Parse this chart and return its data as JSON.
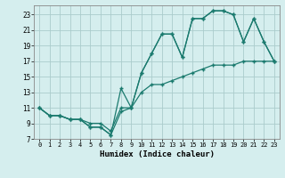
{
  "xlabel": "Humidex (Indice chaleur)",
  "bg_color": "#d5eeee",
  "grid_color": "#aacccc",
  "line_color": "#1a7a6e",
  "xlim": [
    -0.5,
    23.5
  ],
  "ylim": [
    7,
    24.2
  ],
  "xticks": [
    0,
    1,
    2,
    3,
    4,
    5,
    6,
    7,
    8,
    9,
    10,
    11,
    12,
    13,
    14,
    15,
    16,
    17,
    18,
    19,
    20,
    21,
    22,
    23
  ],
  "yticks": [
    7,
    9,
    11,
    13,
    15,
    17,
    19,
    21,
    23
  ],
  "line1_x": [
    0,
    1,
    2,
    3,
    4,
    5,
    6,
    7,
    8,
    9,
    10,
    11,
    12,
    13,
    14,
    15,
    16,
    17,
    18,
    19,
    20,
    21,
    22,
    23
  ],
  "line1_y": [
    11,
    10,
    10,
    9.5,
    9.5,
    8.5,
    8.5,
    7.5,
    10.5,
    11,
    15.5,
    18,
    20.5,
    20.5,
    17.5,
    22.5,
    22.5,
    23.5,
    23.5,
    23,
    19.5,
    22.5,
    19.5,
    17
  ],
  "line2_x": [
    0,
    1,
    2,
    3,
    4,
    5,
    6,
    7,
    8,
    9,
    10,
    11,
    12,
    13,
    14,
    15,
    16,
    17,
    18,
    19,
    20,
    21,
    22,
    23
  ],
  "line2_y": [
    11,
    10,
    10,
    9.5,
    9.5,
    8.5,
    8.5,
    7.5,
    13.5,
    11,
    15.5,
    18,
    20.5,
    20.5,
    17.5,
    22.5,
    22.5,
    23.5,
    23.5,
    23,
    19.5,
    22.5,
    19.5,
    17
  ],
  "line3_x": [
    0,
    1,
    2,
    3,
    4,
    5,
    6,
    7,
    8,
    9,
    10,
    11,
    12,
    13,
    14,
    15,
    16,
    17,
    18,
    19,
    20,
    21,
    22,
    23
  ],
  "line3_y": [
    11,
    10,
    10,
    9.5,
    9.5,
    9,
    9,
    8,
    11,
    11,
    13,
    14,
    14,
    14.5,
    15,
    15.5,
    16,
    16.5,
    16.5,
    16.5,
    17,
    17,
    17,
    17
  ]
}
